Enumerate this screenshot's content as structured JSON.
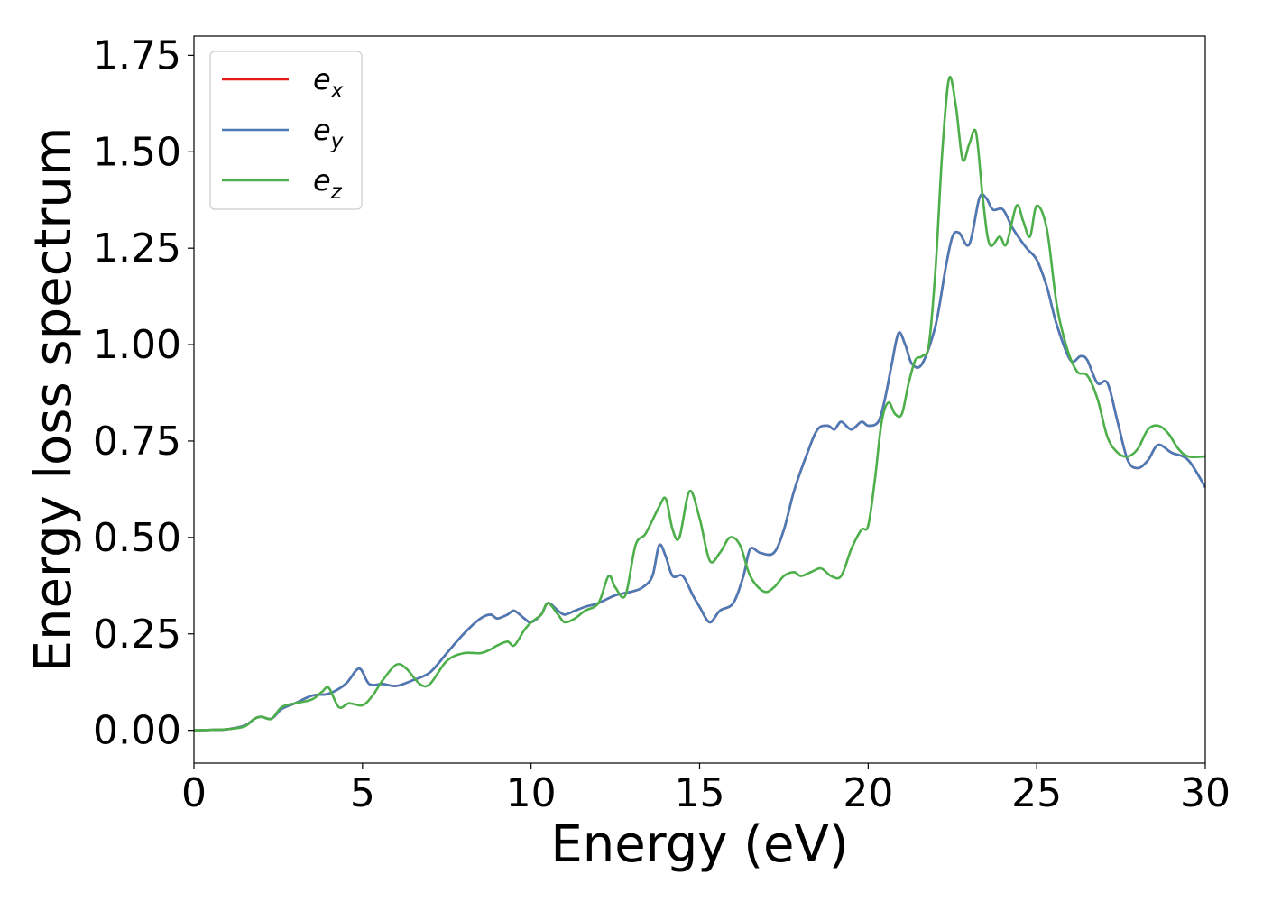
{
  "chart_data": {
    "type": "line",
    "xlabel": "Energy (eV)",
    "ylabel": "Energy loss spectrum",
    "xlim": [
      0,
      30
    ],
    "ylim": [
      -0.085,
      1.8
    ],
    "xticks": [
      0,
      5,
      10,
      15,
      20,
      25,
      30
    ],
    "xtick_labels": [
      "0",
      "5",
      "10",
      "15",
      "20",
      "25",
      "30"
    ],
    "yticks": [
      0,
      0.25,
      0.5,
      0.75,
      1.0,
      1.25,
      1.5,
      1.75
    ],
    "ytick_labels": [
      "0.00",
      "0.25",
      "0.50",
      "0.75",
      "1.00",
      "1.25",
      "1.50",
      "1.75"
    ],
    "grid": false,
    "legend_position": "top-left",
    "series": [
      {
        "name": "e_x",
        "label_base": "e",
        "label_sub": "x",
        "color": "#e41a1c",
        "x": [
          0,
          0.5,
          1.0,
          1.5,
          1.8,
          2.0,
          2.3,
          2.6,
          3.0,
          3.5,
          4.0,
          4.5,
          4.9,
          5.2,
          5.6,
          6.0,
          6.5,
          7.0,
          7.5,
          8.0,
          8.5,
          8.8,
          9.0,
          9.3,
          9.5,
          9.8,
          10.0,
          10.3,
          10.5,
          10.8,
          11.0,
          11.3,
          11.6,
          12.0,
          12.5,
          13.0,
          13.3,
          13.6,
          13.8,
          14.0,
          14.2,
          14.5,
          14.8,
          15.0,
          15.3,
          15.6,
          16.0,
          16.3,
          16.5,
          16.8,
          17.2,
          17.5,
          17.8,
          18.2,
          18.5,
          18.8,
          19.0,
          19.2,
          19.5,
          19.8,
          20.0,
          20.3,
          20.5,
          20.7,
          20.9,
          21.1,
          21.3,
          21.6,
          22.0,
          22.3,
          22.5,
          22.7,
          23.0,
          23.3,
          23.5,
          23.7,
          24.0,
          24.3,
          24.7,
          25.0,
          25.3,
          25.6,
          26.0,
          26.3,
          26.5,
          26.8,
          27.1,
          27.4,
          27.7,
          28.0,
          28.3,
          28.6,
          29.0,
          29.5,
          30.0
        ],
        "y": [
          0,
          0.001,
          0.003,
          0.012,
          0.03,
          0.035,
          0.03,
          0.055,
          0.07,
          0.09,
          0.095,
          0.12,
          0.16,
          0.12,
          0.12,
          0.115,
          0.13,
          0.15,
          0.2,
          0.25,
          0.29,
          0.3,
          0.29,
          0.3,
          0.31,
          0.29,
          0.28,
          0.3,
          0.33,
          0.31,
          0.3,
          0.31,
          0.32,
          0.33,
          0.35,
          0.36,
          0.37,
          0.4,
          0.48,
          0.45,
          0.4,
          0.4,
          0.35,
          0.32,
          0.28,
          0.31,
          0.33,
          0.4,
          0.47,
          0.46,
          0.46,
          0.52,
          0.62,
          0.72,
          0.78,
          0.79,
          0.78,
          0.8,
          0.78,
          0.8,
          0.79,
          0.8,
          0.86,
          0.95,
          1.03,
          1.0,
          0.95,
          0.95,
          1.05,
          1.2,
          1.28,
          1.29,
          1.26,
          1.38,
          1.38,
          1.35,
          1.35,
          1.3,
          1.25,
          1.22,
          1.15,
          1.05,
          0.96,
          0.97,
          0.96,
          0.9,
          0.9,
          0.8,
          0.7,
          0.68,
          0.7,
          0.74,
          0.72,
          0.7,
          0.63
        ]
      },
      {
        "name": "e_y",
        "label_base": "e",
        "label_sub": "y",
        "color": "#4a7bb7",
        "x": [
          0,
          0.5,
          1.0,
          1.5,
          1.8,
          2.0,
          2.3,
          2.6,
          3.0,
          3.5,
          4.0,
          4.5,
          4.9,
          5.2,
          5.6,
          6.0,
          6.5,
          7.0,
          7.5,
          8.0,
          8.5,
          8.8,
          9.0,
          9.3,
          9.5,
          9.8,
          10.0,
          10.3,
          10.5,
          10.8,
          11.0,
          11.3,
          11.6,
          12.0,
          12.5,
          13.0,
          13.3,
          13.6,
          13.8,
          14.0,
          14.2,
          14.5,
          14.8,
          15.0,
          15.3,
          15.6,
          16.0,
          16.3,
          16.5,
          16.8,
          17.2,
          17.5,
          17.8,
          18.2,
          18.5,
          18.8,
          19.0,
          19.2,
          19.5,
          19.8,
          20.0,
          20.3,
          20.5,
          20.7,
          20.9,
          21.1,
          21.3,
          21.6,
          22.0,
          22.3,
          22.5,
          22.7,
          23.0,
          23.3,
          23.5,
          23.7,
          24.0,
          24.3,
          24.7,
          25.0,
          25.3,
          25.6,
          26.0,
          26.3,
          26.5,
          26.8,
          27.1,
          27.4,
          27.7,
          28.0,
          28.3,
          28.6,
          29.0,
          29.5,
          30.0
        ],
        "y": [
          0,
          0.001,
          0.003,
          0.012,
          0.03,
          0.035,
          0.03,
          0.055,
          0.07,
          0.09,
          0.095,
          0.12,
          0.16,
          0.12,
          0.12,
          0.115,
          0.13,
          0.15,
          0.2,
          0.25,
          0.29,
          0.3,
          0.29,
          0.3,
          0.31,
          0.29,
          0.28,
          0.3,
          0.33,
          0.31,
          0.3,
          0.31,
          0.32,
          0.33,
          0.35,
          0.36,
          0.37,
          0.4,
          0.48,
          0.45,
          0.4,
          0.4,
          0.35,
          0.32,
          0.28,
          0.31,
          0.33,
          0.4,
          0.47,
          0.46,
          0.46,
          0.52,
          0.62,
          0.72,
          0.78,
          0.79,
          0.78,
          0.8,
          0.78,
          0.8,
          0.79,
          0.8,
          0.86,
          0.95,
          1.03,
          1.0,
          0.95,
          0.95,
          1.05,
          1.2,
          1.28,
          1.29,
          1.26,
          1.38,
          1.38,
          1.35,
          1.35,
          1.3,
          1.25,
          1.22,
          1.15,
          1.05,
          0.96,
          0.97,
          0.96,
          0.9,
          0.9,
          0.8,
          0.7,
          0.68,
          0.7,
          0.74,
          0.72,
          0.7,
          0.63
        ]
      },
      {
        "name": "e_z",
        "label_base": "e",
        "label_sub": "z",
        "color": "#4daf4a",
        "x": [
          0,
          0.5,
          1.0,
          1.5,
          1.8,
          2.0,
          2.3,
          2.6,
          3.0,
          3.5,
          3.8,
          4.0,
          4.3,
          4.6,
          5.0,
          5.3,
          5.6,
          6.0,
          6.3,
          6.7,
          7.0,
          7.5,
          8.0,
          8.5,
          8.8,
          9.0,
          9.3,
          9.5,
          9.8,
          10.0,
          10.3,
          10.5,
          10.8,
          11.0,
          11.3,
          11.6,
          12.0,
          12.3,
          12.5,
          12.8,
          13.1,
          13.4,
          13.8,
          14.0,
          14.2,
          14.4,
          14.7,
          15.0,
          15.3,
          15.6,
          15.9,
          16.2,
          16.5,
          16.9,
          17.2,
          17.5,
          17.8,
          18.0,
          18.3,
          18.6,
          18.9,
          19.2,
          19.5,
          19.8,
          20.0,
          20.2,
          20.4,
          20.6,
          20.8,
          21.0,
          21.2,
          21.4,
          21.6,
          21.8,
          22.0,
          22.2,
          22.4,
          22.6,
          22.8,
          23.0,
          23.2,
          23.4,
          23.6,
          23.9,
          24.1,
          24.4,
          24.6,
          24.8,
          25.0,
          25.3,
          25.6,
          25.9,
          26.2,
          26.5,
          26.8,
          27.1,
          27.4,
          27.7,
          28.0,
          28.3,
          28.6,
          28.9,
          29.2,
          29.5,
          30.0
        ],
        "y": [
          0,
          0.001,
          0.003,
          0.01,
          0.03,
          0.035,
          0.03,
          0.06,
          0.07,
          0.08,
          0.1,
          0.11,
          0.06,
          0.07,
          0.065,
          0.09,
          0.13,
          0.17,
          0.16,
          0.12,
          0.12,
          0.18,
          0.2,
          0.2,
          0.21,
          0.22,
          0.23,
          0.22,
          0.26,
          0.28,
          0.3,
          0.33,
          0.3,
          0.28,
          0.29,
          0.31,
          0.33,
          0.4,
          0.37,
          0.35,
          0.48,
          0.51,
          0.58,
          0.6,
          0.52,
          0.5,
          0.62,
          0.55,
          0.44,
          0.46,
          0.5,
          0.48,
          0.4,
          0.36,
          0.37,
          0.4,
          0.41,
          0.4,
          0.41,
          0.42,
          0.4,
          0.4,
          0.47,
          0.52,
          0.53,
          0.65,
          0.8,
          0.85,
          0.82,
          0.82,
          0.9,
          0.96,
          0.97,
          1.0,
          1.2,
          1.5,
          1.69,
          1.62,
          1.48,
          1.52,
          1.55,
          1.38,
          1.26,
          1.28,
          1.26,
          1.36,
          1.32,
          1.28,
          1.36,
          1.3,
          1.1,
          0.99,
          0.93,
          0.92,
          0.86,
          0.76,
          0.72,
          0.71,
          0.73,
          0.78,
          0.79,
          0.77,
          0.73,
          0.71,
          0.71
        ]
      }
    ]
  }
}
